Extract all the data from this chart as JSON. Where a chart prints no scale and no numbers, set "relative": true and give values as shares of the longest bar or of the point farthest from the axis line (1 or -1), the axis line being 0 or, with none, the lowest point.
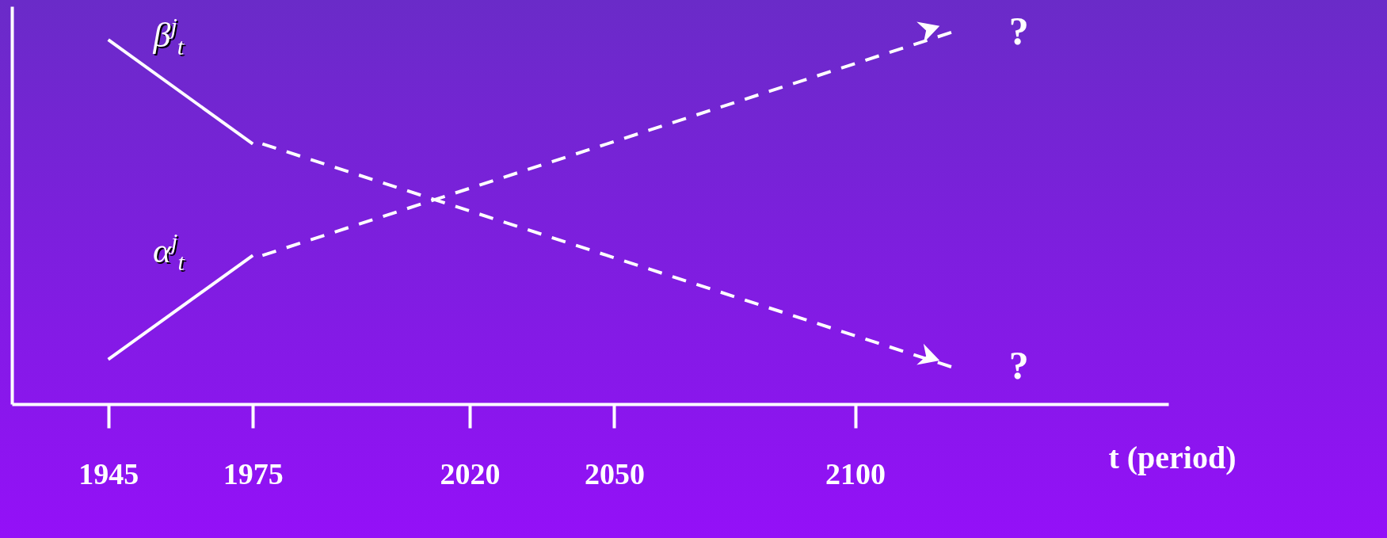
{
  "chart_data": {
    "type": "line",
    "relative": true,
    "xlabel": "t (period)",
    "xlim": [
      1925,
      2165
    ],
    "xticks": [
      1945,
      1975,
      2020,
      2050,
      2100
    ],
    "tick_labels": "x",
    "grid": false,
    "series": [
      {
        "name": "β$^{j}$$_{t}$",
        "color": "#ffffff",
        "line_style": "solid",
        "x": [
          1945,
          1975
        ],
        "values": [
          0.98,
          0.7
        ]
      },
      {
        "color": "#ffffff",
        "line_style": "dashed",
        "x": [
          1977,
          2120
        ],
        "values": [
          0.7,
          0.1
        ]
      },
      {
        "name": "α$^{j}$$_{t}$",
        "color": "#ffffff",
        "line_style": "solid",
        "x": [
          1945,
          1975
        ],
        "values": [
          0.12,
          0.4
        ]
      },
      {
        "color": "#ffffff",
        "line_style": "dashed",
        "x": [
          1977,
          2120
        ],
        "values": [
          0.4,
          1.0
        ]
      }
    ],
    "annotations": [
      {
        "text": "?",
        "x": 2120,
        "y": 1.0
      },
      {
        "text": "?",
        "x": 2120,
        "y": 0.1
      }
    ]
  }
}
